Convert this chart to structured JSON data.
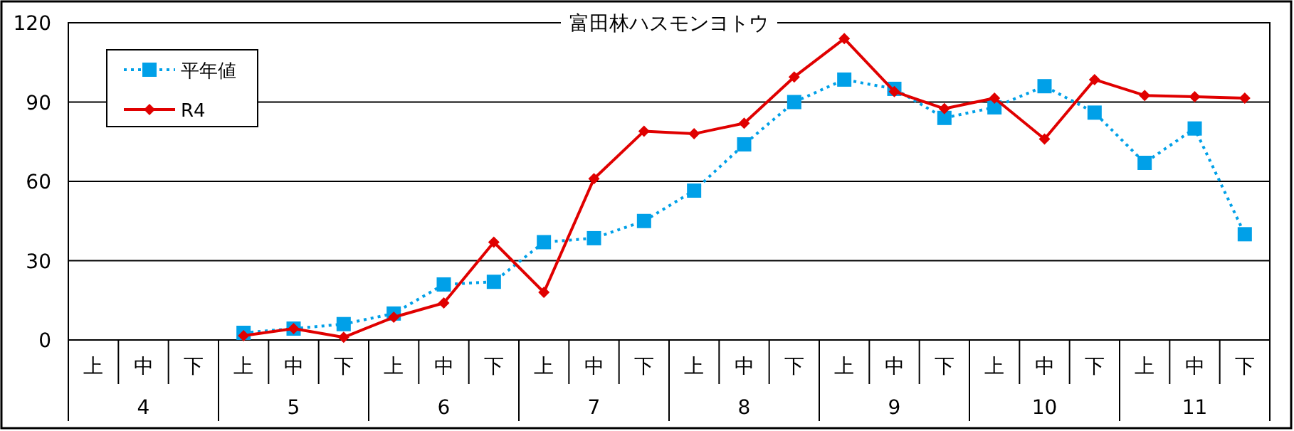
{
  "chart_data": {
    "type": "line",
    "title": "富田林ハスモンヨトウ",
    "categories": [
      "上",
      "中",
      "下",
      "上",
      "中",
      "下",
      "上",
      "中",
      "下",
      "上",
      "中",
      "下",
      "上",
      "中",
      "下",
      "上",
      "中",
      "下",
      "上",
      "中",
      "下",
      "上",
      "中",
      "下"
    ],
    "annotations": [
      "4",
      "5",
      "6",
      "7",
      "8",
      "9",
      "10",
      "11"
    ],
    "series": [
      {
        "name": "平年値",
        "color": "#00a0e8",
        "marker": "square",
        "line_style": "dotted",
        "values": [
          null,
          null,
          null,
          2.7,
          4.3,
          6,
          10,
          21,
          22,
          37,
          38.5,
          45,
          56.5,
          74,
          90,
          98.5,
          95,
          84,
          88,
          96,
          86,
          67,
          80,
          40
        ]
      },
      {
        "name": "R4",
        "color": "#e00000",
        "marker": "diamond",
        "line_style": "solid",
        "values": [
          null,
          null,
          null,
          1.6,
          4.3,
          1,
          8.6,
          14,
          37,
          18,
          61,
          79,
          78,
          82,
          99.5,
          114,
          94,
          87.5,
          91.5,
          76,
          98.5,
          92.5,
          92,
          91.5
        ]
      }
    ],
    "ylim": [
      0,
      120
    ],
    "yticks": [
      0,
      30,
      60,
      90,
      120
    ],
    "grid": "y",
    "legend": "top left"
  }
}
